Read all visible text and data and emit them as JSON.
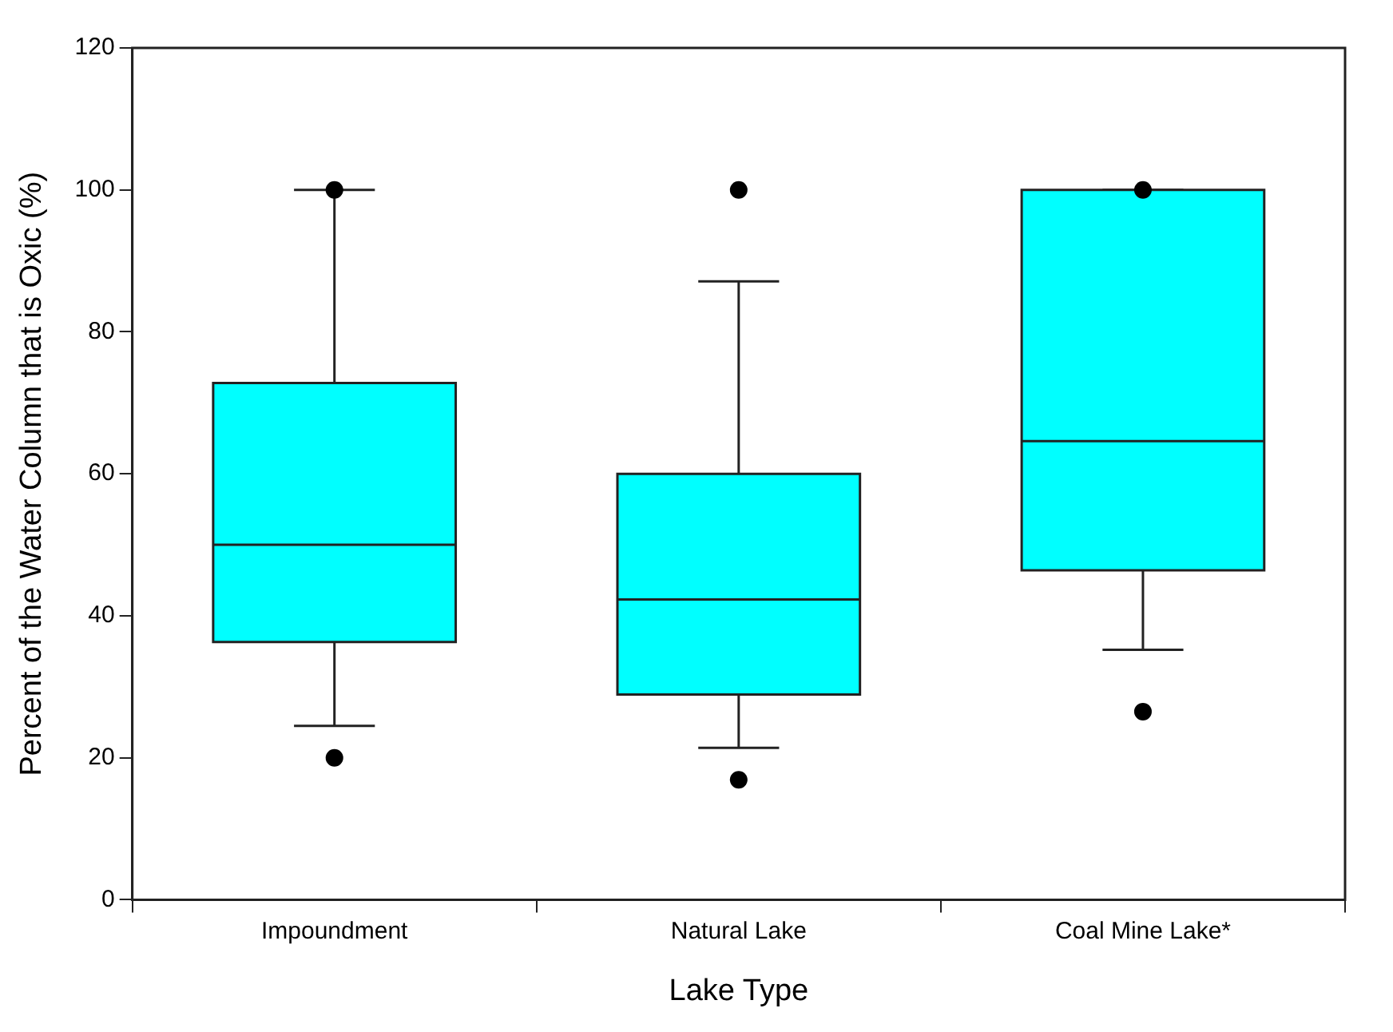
{
  "chart_data": {
    "type": "box",
    "xlabel": "Lake Type",
    "ylabel": "Percent of the Water Column that is Oxic (%)",
    "categories": [
      "Impoundment",
      "Natural Lake",
      "Coal Mine Lake*"
    ],
    "color": "#00ffff",
    "boxes": [
      {
        "low": 24.5,
        "q1": 36.3,
        "median": 50,
        "q3": 72.8,
        "high": 100,
        "outliers": [
          20,
          100
        ]
      },
      {
        "low": 21.4,
        "q1": 28.9,
        "median": 42.3,
        "q3": 60,
        "high": 87.1,
        "outliers": [
          16.9,
          100
        ]
      },
      {
        "low": 35.2,
        "q1": 46.4,
        "median": 64.6,
        "q3": 100,
        "high": 100,
        "outliers": [
          26.5,
          100
        ]
      }
    ],
    "ylim": [
      0,
      120
    ],
    "yticks": [
      0,
      20,
      40,
      60,
      80,
      100,
      120
    ],
    "grid": false,
    "legend": false
  }
}
